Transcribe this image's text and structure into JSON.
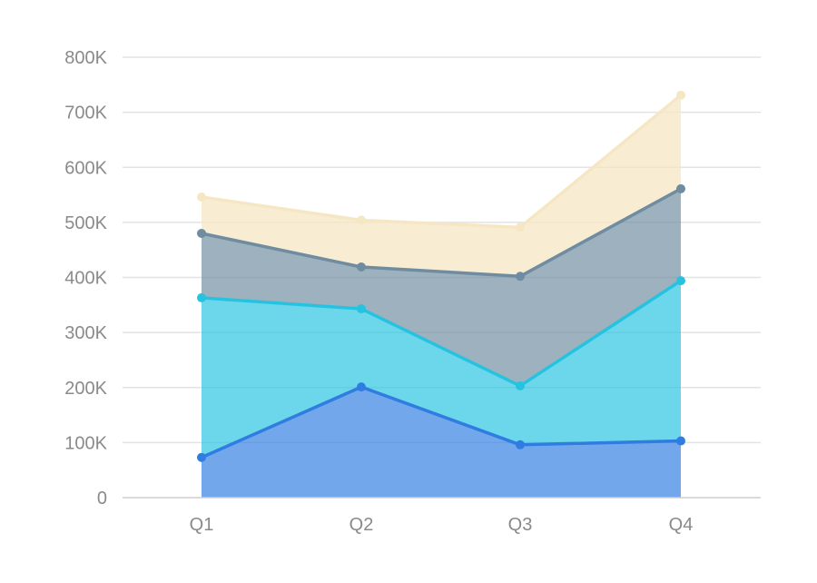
{
  "chart_data": {
    "type": "area",
    "stacked": true,
    "categories": [
      "Q1",
      "Q2",
      "Q3",
      "Q4"
    ],
    "series": [
      {
        "values": [
          73000,
          201000,
          96000,
          103000
        ],
        "color": "#2f7de1"
      },
      {
        "values": [
          290000,
          142000,
          107000,
          291000
        ],
        "color": "#26c3e1"
      },
      {
        "values": [
          117000,
          76000,
          199000,
          167000
        ],
        "color": "#6f8ca0"
      },
      {
        "values": [
          66000,
          85000,
          89000,
          170000
        ],
        "color": "#f6e7c4"
      }
    ],
    "yticks": [
      "0",
      "100K",
      "200K",
      "300K",
      "400K",
      "500K",
      "600K",
      "700K",
      "800K"
    ],
    "ylim": [
      0,
      800000
    ],
    "grid": true,
    "legend": "none",
    "title": "",
    "xlabel": "",
    "ylabel": ""
  }
}
